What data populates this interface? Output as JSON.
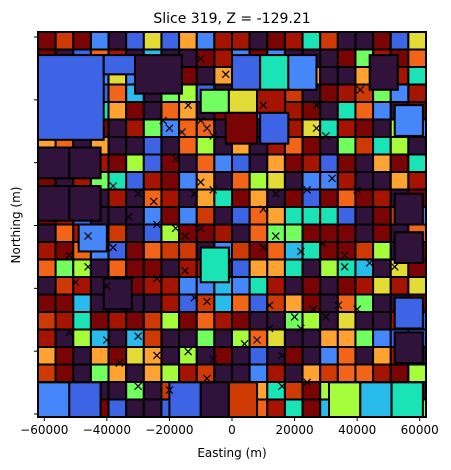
{
  "chart_data": {
    "type": "heatmap",
    "title": "Slice 319, Z = -129.21",
    "xlabel": "Easting (m)",
    "ylabel": "Northing (m)",
    "xlim": [
      -62000,
      62000
    ],
    "x_ticks": [
      -60000,
      -40000,
      -20000,
      0,
      20000,
      40000,
      60000
    ],
    "x_tick_labels": [
      "−60000",
      "−40000",
      "−20000",
      "0",
      "20000",
      "40000",
      "60000"
    ],
    "y_tick_count": 7,
    "y_tick_labels_visible": false,
    "colormap": "turbo",
    "cell_outline_color": "#000000",
    "marker_symbol": "x",
    "colors": [
      "#30123b",
      "#3e64e6",
      "#4686fb",
      "#28bbeb",
      "#1ae4b6",
      "#72fe5e",
      "#a4fc3b",
      "#e3db36",
      "#fea331",
      "#f26518",
      "#cf3a04",
      "#a51301",
      "#7a0403"
    ],
    "big_cells": [
      {
        "x0": -62000,
        "y0": 0.72,
        "w": 21000,
        "h": 0.22,
        "c": 1
      },
      {
        "x0": -41000,
        "y0": 0.89,
        "w": 10000,
        "h": 0.05,
        "c": 1
      },
      {
        "x0": -31000,
        "y0": 0.84,
        "w": 15000,
        "h": 0.1,
        "c": 0
      },
      {
        "x0": 0,
        "y0": 0.85,
        "w": 9000,
        "h": 0.09,
        "c": 1
      },
      {
        "x0": 9000,
        "y0": 0.85,
        "w": 9000,
        "h": 0.09,
        "c": 4
      },
      {
        "x0": 18000,
        "y0": 0.85,
        "w": 9000,
        "h": 0.09,
        "c": 2
      },
      {
        "x0": 44000,
        "y0": 0.85,
        "w": 9000,
        "h": 0.09,
        "c": 0
      },
      {
        "x0": -10000,
        "y0": 0.79,
        "w": 9000,
        "h": 0.06,
        "c": 5
      },
      {
        "x0": -1000,
        "y0": 0.79,
        "w": 9000,
        "h": 0.06,
        "c": 7
      },
      {
        "x0": 8000,
        "y0": 0.79,
        "w": 9000,
        "h": 0.06,
        "c": 11
      },
      {
        "x0": -2000,
        "y0": 0.71,
        "w": 10000,
        "h": 0.08,
        "c": 12
      },
      {
        "x0": 9000,
        "y0": 0.71,
        "w": 9000,
        "h": 0.08,
        "c": 1
      },
      {
        "x0": 52000,
        "y0": 0.73,
        "w": 9000,
        "h": 0.08,
        "c": 2
      },
      {
        "x0": -62000,
        "y0": 0.62,
        "w": 10000,
        "h": 0.08,
        "c": 0
      },
      {
        "x0": -52000,
        "y0": 0.62,
        "w": 10000,
        "h": 0.08,
        "c": 0
      },
      {
        "x0": -62000,
        "y0": 0.51,
        "w": 10000,
        "h": 0.09,
        "c": 0
      },
      {
        "x0": -52000,
        "y0": 0.51,
        "w": 10000,
        "h": 0.09,
        "c": 0
      },
      {
        "x0": -49000,
        "y0": 0.43,
        "w": 9000,
        "h": 0.07,
        "c": 2
      },
      {
        "x0": -10000,
        "y0": 0.35,
        "w": 9000,
        "h": 0.09,
        "c": 4
      },
      {
        "x0": 52000,
        "y0": 0.5,
        "w": 9000,
        "h": 0.08,
        "c": 0
      },
      {
        "x0": 52000,
        "y0": 0.4,
        "w": 9000,
        "h": 0.08,
        "c": 0
      },
      {
        "x0": -41000,
        "y0": 0.28,
        "w": 9000,
        "h": 0.08,
        "c": 0
      },
      {
        "x0": 52000,
        "y0": 0.14,
        "w": 9000,
        "h": 0.08,
        "c": 0
      },
      {
        "x0": 52000,
        "y0": 0.23,
        "w": 9000,
        "h": 0.08,
        "c": 1
      },
      {
        "x0": -62000,
        "y0": 0.0,
        "w": 10000,
        "h": 0.09,
        "c": 2
      },
      {
        "x0": -52000,
        "y0": 0.0,
        "w": 10000,
        "h": 0.09,
        "c": 1
      },
      {
        "x0": -20000,
        "y0": 0.0,
        "w": 10000,
        "h": 0.09,
        "c": 1
      },
      {
        "x0": -10000,
        "y0": 0.0,
        "w": 9000,
        "h": 0.09,
        "c": 0
      },
      {
        "x0": -1000,
        "y0": 0.0,
        "w": 9000,
        "h": 0.09,
        "c": 10
      },
      {
        "x0": 31000,
        "y0": 0.0,
        "w": 10000,
        "h": 0.09,
        "c": 6
      },
      {
        "x0": 41000,
        "y0": 0.0,
        "w": 10000,
        "h": 0.09,
        "c": 3
      },
      {
        "x0": 51000,
        "y0": 0.0,
        "w": 10000,
        "h": 0.09,
        "c": 4
      }
    ],
    "markers": [
      [
        -10000,
        0.93
      ],
      [
        -2000,
        0.89
      ],
      [
        -14000,
        0.81
      ],
      [
        -10000,
        0.77
      ],
      [
        10000,
        0.81
      ],
      [
        27000,
        0.81
      ],
      [
        41000,
        0.85
      ],
      [
        -20000,
        0.75
      ],
      [
        -16000,
        0.74
      ],
      [
        -8000,
        0.75
      ],
      [
        -22000,
        0.77
      ],
      [
        27000,
        0.75
      ],
      [
        -6000,
        0.73
      ],
      [
        30000,
        0.73
      ],
      [
        -18000,
        0.67
      ],
      [
        -10000,
        0.61
      ],
      [
        -25000,
        0.56
      ],
      [
        -30000,
        0.58
      ],
      [
        -38000,
        0.6
      ],
      [
        -6000,
        0.59
      ],
      [
        -12000,
        0.58
      ],
      [
        -24000,
        0.5
      ],
      [
        -18000,
        0.49
      ],
      [
        -10000,
        0.49
      ],
      [
        -33000,
        0.52
      ],
      [
        10000,
        0.54
      ],
      [
        14000,
        0.58
      ],
      [
        -15000,
        0.47
      ],
      [
        24000,
        0.59
      ],
      [
        32000,
        0.62
      ],
      [
        40000,
        0.59
      ],
      [
        10000,
        0.44
      ],
      [
        14000,
        0.47
      ],
      [
        22000,
        0.43
      ],
      [
        29000,
        0.45
      ],
      [
        36000,
        0.42
      ],
      [
        -46000,
        0.47
      ],
      [
        -38000,
        0.44
      ],
      [
        -52000,
        0.42
      ],
      [
        -46000,
        0.39
      ],
      [
        -50000,
        0.35
      ],
      [
        -40000,
        0.34
      ],
      [
        -24000,
        0.36
      ],
      [
        -15000,
        0.38
      ],
      [
        -8000,
        0.3
      ],
      [
        -12000,
        0.31
      ],
      [
        36000,
        0.39
      ],
      [
        44000,
        0.4
      ],
      [
        52000,
        0.39
      ],
      [
        12000,
        0.29
      ],
      [
        20000,
        0.26
      ],
      [
        26000,
        0.28
      ],
      [
        34000,
        0.29
      ],
      [
        40000,
        0.28
      ],
      [
        -52000,
        0.22
      ],
      [
        -40000,
        0.2
      ],
      [
        -30000,
        0.21
      ],
      [
        -36000,
        0.14
      ],
      [
        -24000,
        0.16
      ],
      [
        -14000,
        0.17
      ],
      [
        -6000,
        0.15
      ],
      [
        8000,
        0.2
      ],
      [
        12000,
        0.23
      ],
      [
        16000,
        0.16
      ],
      [
        4000,
        0.19
      ],
      [
        22000,
        0.23
      ],
      [
        30000,
        0.26
      ],
      [
        -30000,
        0.08
      ],
      [
        -20000,
        0.07
      ],
      [
        -8000,
        0.1
      ],
      [
        16000,
        0.08
      ],
      [
        24000,
        0.09
      ]
    ]
  }
}
